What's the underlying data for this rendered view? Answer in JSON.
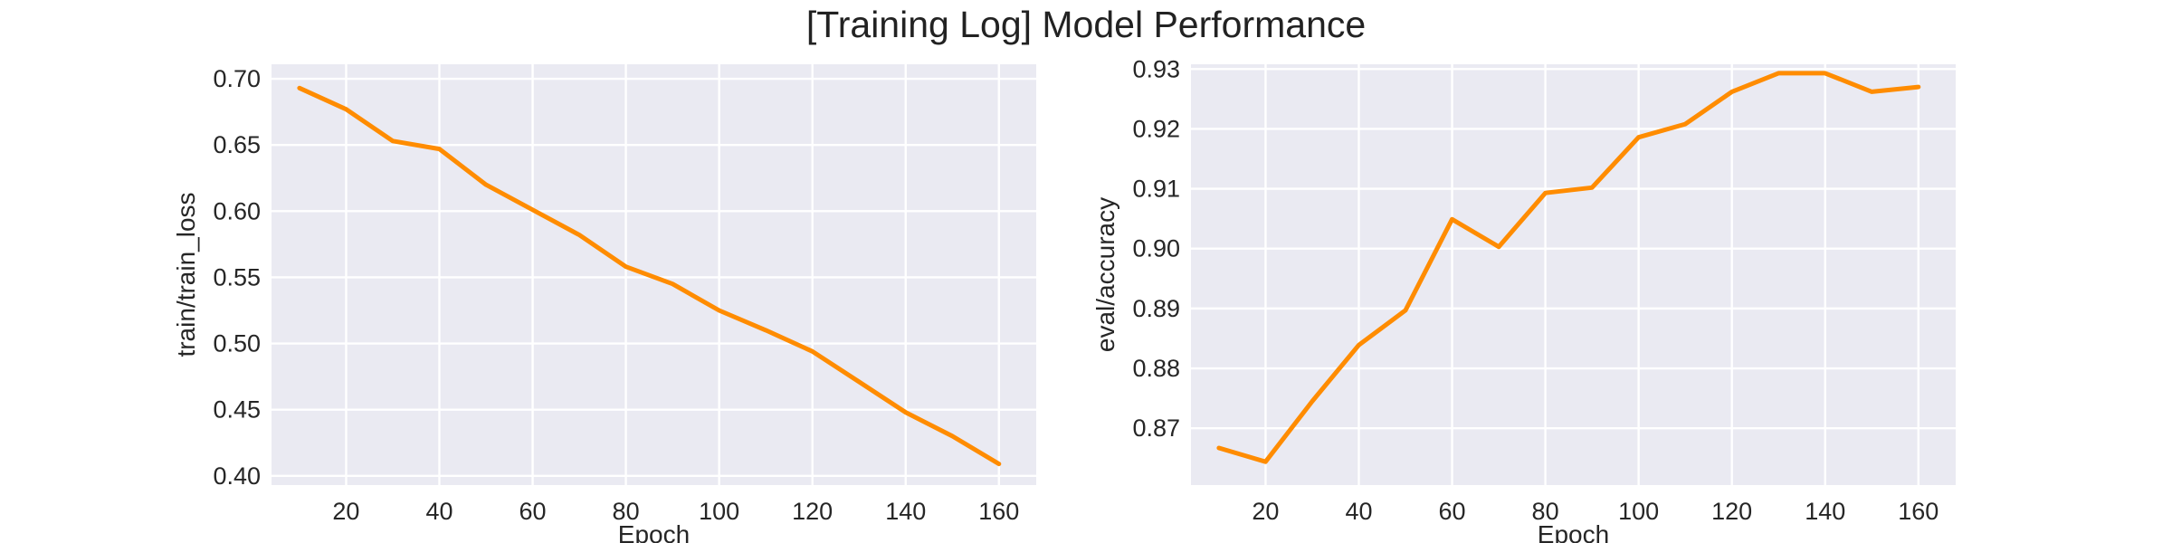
{
  "figure": {
    "title": "[Training Log] Model Performance"
  },
  "colors": {
    "line": "#FF8C00",
    "plot_background": "#EAEAF2",
    "grid": "#FFFFFF",
    "text": "#262626"
  },
  "chart_data": [
    {
      "type": "line",
      "title": "",
      "xlabel": "Epoch",
      "ylabel": "train/train_loss",
      "xlim": [
        4,
        168
      ],
      "ylim": [
        0.393,
        0.711
      ],
      "xticks": [
        20,
        40,
        60,
        80,
        100,
        120,
        140,
        160
      ],
      "yticks": [
        0.4,
        0.45,
        0.5,
        0.55,
        0.6,
        0.65,
        0.7
      ],
      "ytick_labels": [
        "0.40",
        "0.45",
        "0.50",
        "0.55",
        "0.60",
        "0.65",
        "0.70"
      ],
      "grid": true,
      "series": [
        {
          "x": [
            10,
            20,
            30,
            40,
            50,
            60,
            70,
            80,
            90,
            100,
            110,
            120,
            130,
            140,
            150,
            160
          ],
          "y": [
            0.693,
            0.677,
            0.653,
            0.647,
            0.62,
            0.601,
            0.582,
            0.558,
            0.545,
            0.525,
            0.51,
            0.494,
            0.471,
            0.448,
            0.43,
            0.409
          ]
        }
      ]
    },
    {
      "type": "line",
      "title": "",
      "xlabel": "Epoch",
      "ylabel": "eval/accuracy",
      "xlim": [
        4,
        168
      ],
      "ylim": [
        0.8605,
        0.9308
      ],
      "xticks": [
        20,
        40,
        60,
        80,
        100,
        120,
        140,
        160
      ],
      "yticks": [
        0.87,
        0.88,
        0.89,
        0.9,
        0.91,
        0.92,
        0.93
      ],
      "ytick_labels": [
        "0.87",
        "0.88",
        "0.89",
        "0.90",
        "0.91",
        "0.92",
        "0.93"
      ],
      "grid": true,
      "series": [
        {
          "x": [
            10,
            20,
            30,
            40,
            50,
            60,
            70,
            80,
            90,
            100,
            110,
            120,
            130,
            140,
            150,
            160
          ],
          "y": [
            0.8667,
            0.8644,
            0.8745,
            0.8839,
            0.8897,
            0.9049,
            0.9003,
            0.9093,
            0.9102,
            0.9186,
            0.9208,
            0.9262,
            0.9293,
            0.9293,
            0.9262,
            0.927
          ]
        }
      ]
    }
  ]
}
